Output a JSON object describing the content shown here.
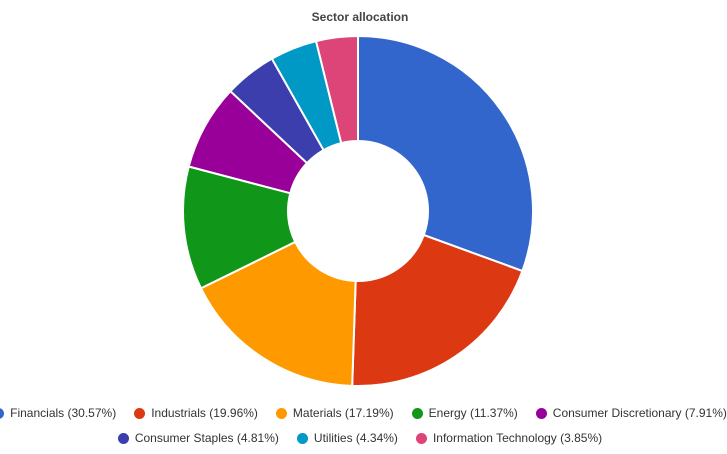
{
  "chart_data": {
    "type": "pie",
    "title": "Sector allocation",
    "donut": true,
    "legend_position": "bottom",
    "slices": [
      {
        "label": "Financials",
        "value": 30.57,
        "legend": "Financials (30.57%)",
        "color": "#3366cc"
      },
      {
        "label": "Industrials",
        "value": 19.96,
        "legend": "Industrials (19.96%)",
        "color": "#dc3912"
      },
      {
        "label": "Materials",
        "value": 17.19,
        "legend": "Materials (17.19%)",
        "color": "#ff9900"
      },
      {
        "label": "Energy",
        "value": 11.37,
        "legend": "Energy (11.37%)",
        "color": "#109618"
      },
      {
        "label": "Consumer Discretionary",
        "value": 7.91,
        "legend": "Consumer Discretionary (7.91%)",
        "color": "#990099"
      },
      {
        "label": "Consumer Staples",
        "value": 4.81,
        "legend": "Consumer Staples (4.81%)",
        "color": "#3b3eac"
      },
      {
        "label": "Utilities",
        "value": 4.34,
        "legend": "Utilities (4.34%)",
        "color": "#0099c6"
      },
      {
        "label": "Information Technology",
        "value": 3.85,
        "legend": "Information Technology (3.85%)",
        "color": "#dd4477"
      }
    ]
  }
}
